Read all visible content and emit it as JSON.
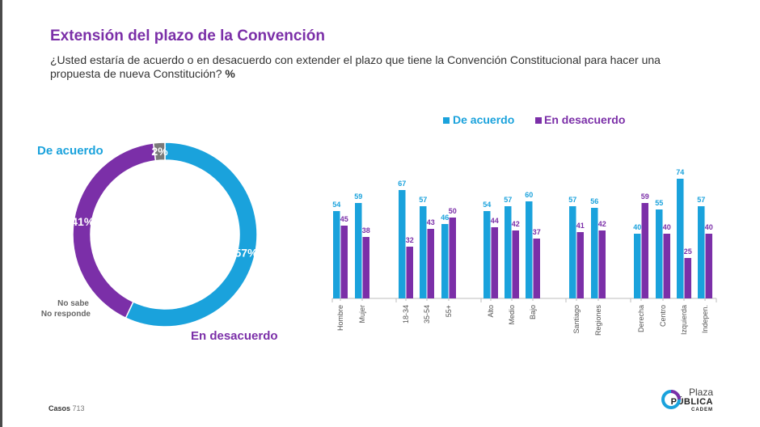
{
  "header": {
    "title": "Extensión del plazo de la Convención",
    "subtitle": "¿Usted estaría de acuerdo o en desacuerdo con extender el plazo que tiene la Convención Constitucional para hacer una propuesta de nueva Constitución?",
    "subtitle_unit": "%"
  },
  "footer": {
    "casos_label": "Casos",
    "casos_value": "713"
  },
  "logo": {
    "line1": "Plaza",
    "line2": "PÚBLICA",
    "line3": "CADEM"
  },
  "colors": {
    "acuerdo": "#1aa2dc",
    "desacuerdo": "#7b2fa8",
    "nosabe": "#7a7a7a",
    "title": "#7b2fa8"
  },
  "chart_data": [
    {
      "type": "pie",
      "variant": "donut",
      "slices": [
        {
          "name": "De acuerdo",
          "value": 57,
          "label": "57%",
          "color": "#1aa2dc"
        },
        {
          "name": "En desacuerdo",
          "value": 41,
          "label": "41%",
          "color": "#7b2fa8"
        },
        {
          "name": "No sabe\nNo responde",
          "name_line1": "No sabe",
          "name_line2": "No responde",
          "value": 2,
          "label": "2%",
          "color": "#7a7a7a"
        }
      ]
    },
    {
      "type": "bar",
      "legend": {
        "position": "top-center",
        "items": [
          "De acuerdo",
          "En desacuerdo"
        ]
      },
      "groups": [
        {
          "categories": [
            "Hombre",
            "Mujer"
          ]
        },
        {
          "categories": [
            "18-34",
            "35-54",
            "55+"
          ]
        },
        {
          "categories": [
            "Alto",
            "Medio",
            "Bajo"
          ]
        },
        {
          "categories": [
            "Santiago",
            "Regiones"
          ]
        },
        {
          "categories": [
            "Derecha",
            "Centro",
            "Izquierda",
            "Indepen."
          ]
        }
      ],
      "categories": [
        "Hombre",
        "Mujer",
        "18-34",
        "35-54",
        "55+",
        "Alto",
        "Medio",
        "Bajo",
        "Santiago",
        "Regiones",
        "Derecha",
        "Centro",
        "Izquierda",
        "Indepen."
      ],
      "series": [
        {
          "name": "De acuerdo",
          "color": "#1aa2dc",
          "values": [
            54,
            59,
            67,
            57,
            46,
            54,
            57,
            60,
            57,
            56,
            40,
            55,
            74,
            57
          ]
        },
        {
          "name": "En desacuerdo",
          "color": "#7b2fa8",
          "values": [
            45,
            38,
            32,
            43,
            50,
            44,
            42,
            37,
            41,
            42,
            59,
            40,
            25,
            40
          ]
        }
      ],
      "ylim": [
        0,
        100
      ],
      "grid": false
    }
  ]
}
